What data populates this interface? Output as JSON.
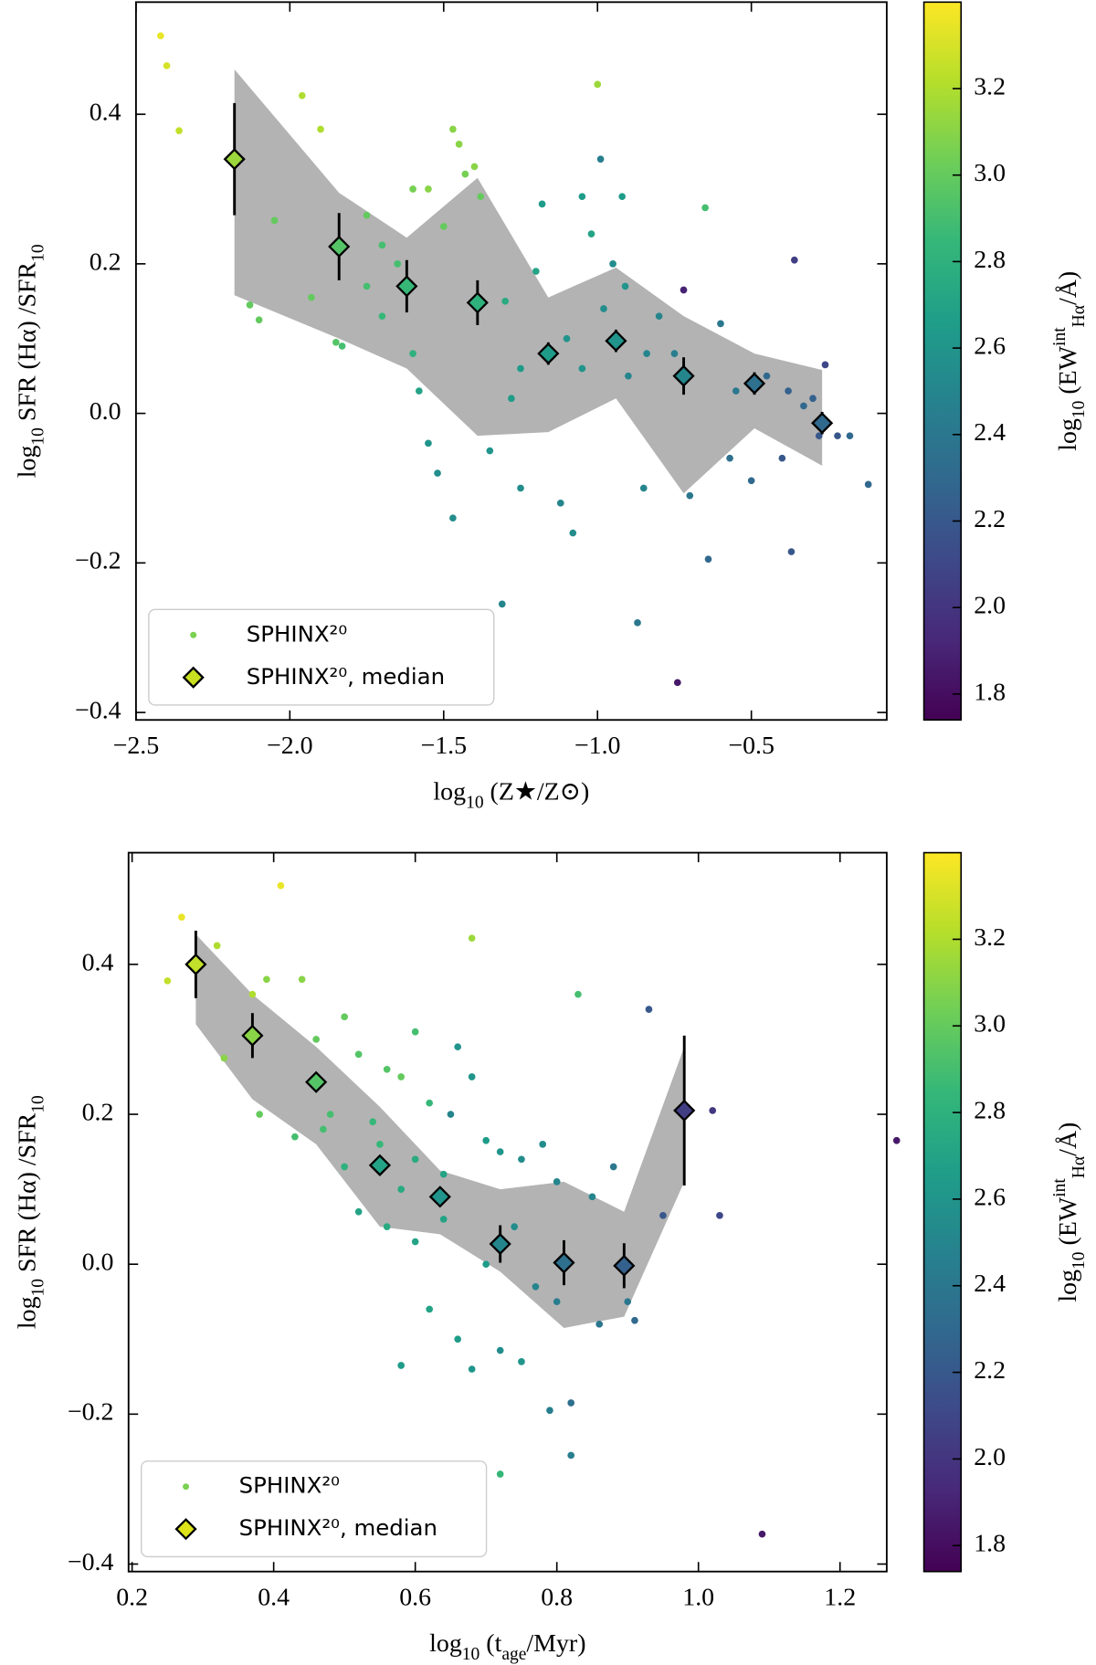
{
  "chart_data": [
    {
      "type": "scatter",
      "xlabel": "log_{10} (Z★/Z⊙)",
      "ylabel": "log_{10} SFR (Hα) /SFR_{10}",
      "xlim": [
        -2.5,
        -0.06
      ],
      "ylim": [
        -0.41,
        0.55
      ],
      "xticks": [
        {
          "value": -2.5,
          "label": "−2.5"
        },
        {
          "value": -2.0,
          "label": "−2.0"
        },
        {
          "value": -1.5,
          "label": "−1.5"
        },
        {
          "value": -1.0,
          "label": "−1.0"
        },
        {
          "value": -0.5,
          "label": "−0.5"
        }
      ],
      "yticks": [
        {
          "value": -0.4,
          "label": "−0.4"
        },
        {
          "value": -0.2,
          "label": "−0.2"
        },
        {
          "value": 0,
          "label": "0.0"
        },
        0.2,
        0.4
      ],
      "legend": "lower left",
      "series": [
        {
          "name": "SPHINX²⁰",
          "color": "#7ad151",
          "x": [
            -2.42,
            -2.4,
            -2.36,
            -1.96,
            -1.9,
            -2.05,
            -2.13,
            -2.1,
            -1.93,
            -1.85,
            -1.83,
            -1.75,
            -1.7,
            -1.65,
            -1.6,
            -1.55,
            -1.5,
            -1.47,
            -1.45,
            -1.43,
            -1.4,
            -1.38,
            -1.6,
            -1.58,
            -1.55,
            -1.52,
            -1.47,
            -1.35,
            -1.31,
            -1.28,
            -1.25,
            -1.2,
            -1.18,
            -1.12,
            -1.08,
            -1.05,
            -1.02,
            -1.0,
            -0.99,
            -0.95,
            -0.92,
            -0.91,
            -0.87,
            -0.85,
            -0.8,
            -0.75,
            -0.74,
            -0.72,
            -0.7,
            -0.65,
            -0.64,
            -0.6,
            -0.57,
            -0.5,
            -0.45,
            -0.4,
            -0.38,
            -0.37,
            -0.36,
            -0.3,
            -0.28,
            -0.26,
            -0.22,
            -0.18,
            -0.12,
            -1.1,
            -1.05,
            -0.98,
            -0.9,
            -1.3,
            -1.7,
            -1.75,
            -1.25,
            -0.84,
            -0.55,
            -0.33
          ],
          "values": [
            0.505,
            0.465,
            0.378,
            0.425,
            0.38,
            0.258,
            0.145,
            0.125,
            0.155,
            0.095,
            0.09,
            0.265,
            0.225,
            0.2,
            0.3,
            0.3,
            0.25,
            0.38,
            0.36,
            0.32,
            0.33,
            0.29,
            0.08,
            0.03,
            -0.04,
            -0.08,
            -0.14,
            -0.05,
            -0.255,
            0.02,
            -0.1,
            0.19,
            0.28,
            -0.12,
            -0.16,
            0.29,
            0.24,
            0.44,
            0.34,
            0.2,
            0.29,
            0.17,
            -0.28,
            -0.1,
            0.13,
            0.08,
            -0.36,
            0.165,
            -0.11,
            0.275,
            -0.195,
            0.12,
            -0.06,
            -0.09,
            0.05,
            -0.06,
            0.03,
            -0.185,
            0.205,
            0.02,
            -0.03,
            0.065,
            -0.03,
            -0.03,
            -0.095,
            0.1,
            0.06,
            0.14,
            0.05,
            0.15,
            0.13,
            0.17,
            0.06,
            0.08,
            0.03,
            0.01
          ],
          "c": [
            3.35,
            3.3,
            3.25,
            3.2,
            3.2,
            3.0,
            3.0,
            3.0,
            3.0,
            2.95,
            2.9,
            3.0,
            2.9,
            2.9,
            3.05,
            3.1,
            3.0,
            3.1,
            3.1,
            3.05,
            3.1,
            3.0,
            2.8,
            2.7,
            2.6,
            2.55,
            2.55,
            2.6,
            2.5,
            2.65,
            2.55,
            2.7,
            2.65,
            2.5,
            2.55,
            2.65,
            2.7,
            3.15,
            2.45,
            2.55,
            2.65,
            2.6,
            2.4,
            2.5,
            2.5,
            2.45,
            1.85,
            1.9,
            2.4,
            2.9,
            2.3,
            2.4,
            2.35,
            2.3,
            2.3,
            2.2,
            2.25,
            2.2,
            2.05,
            2.25,
            2.2,
            2.1,
            2.2,
            2.3,
            2.3,
            2.6,
            2.6,
            2.55,
            2.5,
            2.75,
            2.85,
            2.9,
            2.65,
            2.5,
            2.4,
            2.3
          ]
        },
        {
          "name": "SPHINX²⁰, median",
          "color": "#c8e020",
          "x": [
            -2.18,
            -1.84,
            -1.62,
            -1.39,
            -1.16,
            -0.94,
            -0.72,
            -0.49,
            -0.27
          ],
          "values": [
            0.34,
            0.223,
            0.17,
            0.148,
            0.08,
            0.097,
            0.05,
            0.04,
            -0.013
          ],
          "errors": [
            0.075,
            0.045,
            0.035,
            0.03,
            0.015,
            0.015,
            0.025,
            0.015,
            0.015
          ],
          "c": [
            3.15,
            2.95,
            2.85,
            2.8,
            2.65,
            2.6,
            2.5,
            2.35,
            2.3
          ]
        }
      ],
      "band": {
        "color": "#b3b3b3",
        "x": [
          -2.18,
          -1.84,
          -1.62,
          -1.39,
          -1.16,
          -0.94,
          -0.72,
          -0.49,
          -0.27
        ],
        "upper": [
          0.46,
          0.295,
          0.235,
          0.315,
          0.155,
          0.195,
          0.13,
          0.08,
          0.058
        ],
        "lower": [
          0.158,
          0.1,
          0.06,
          -0.03,
          -0.025,
          0.02,
          -0.107,
          -0.02,
          -0.07
        ]
      },
      "colorbar": {
        "colormap": "viridis",
        "label": "log_{10} (EW^{int}_{Hα}/Å)",
        "clim": [
          1.74,
          3.4
        ],
        "ticks": [
          1.8,
          {
            "value": 2.0,
            "label": "2.0"
          },
          2.2,
          2.4,
          2.6,
          2.8,
          {
            "value": 3.0,
            "label": "3.0"
          },
          3.2
        ]
      }
    },
    {
      "type": "scatter",
      "xlabel": "log_{10} (t_{age}/Myr)",
      "ylabel": "log_{10} SFR (Hα) /SFR_{10}",
      "xlim": [
        0.195,
        1.266
      ],
      "ylim": [
        -0.41,
        0.549
      ],
      "xticks": [
        0.2,
        0.4,
        0.6,
        0.8,
        {
          "value": 1.0,
          "label": "1.0"
        },
        1.2
      ],
      "yticks": [
        {
          "value": -0.4,
          "label": "−0.4"
        },
        {
          "value": -0.2,
          "label": "−0.2"
        },
        {
          "value": 0,
          "label": "0.0"
        },
        0.2,
        0.4
      ],
      "legend": "lower left",
      "series": [
        {
          "name": "SPHINX²⁰",
          "color": "#7ad151",
          "x": [
            0.25,
            0.27,
            0.41,
            0.32,
            0.33,
            0.37,
            0.38,
            0.39,
            0.44,
            0.46,
            0.5,
            0.43,
            0.48,
            0.52,
            0.56,
            0.6,
            0.58,
            0.68,
            0.62,
            0.55,
            0.6,
            0.64,
            0.66,
            0.68,
            0.65,
            0.7,
            0.72,
            0.75,
            0.78,
            0.83,
            0.8,
            0.85,
            0.88,
            0.93,
            0.95,
            1.02,
            1.03,
            1.09,
            1.28,
            0.58,
            0.62,
            0.66,
            0.68,
            0.72,
            0.75,
            0.79,
            0.82,
            0.82,
            0.72,
            0.9,
            0.91,
            0.86,
            0.52,
            0.56,
            0.6,
            0.64,
            0.7,
            0.74,
            0.77,
            0.8,
            0.58,
            0.5,
            0.47,
            0.54
          ],
          "values": [
            0.378,
            0.463,
            0.505,
            0.425,
            0.275,
            0.36,
            0.2,
            0.38,
            0.38,
            0.3,
            0.33,
            0.17,
            0.2,
            0.28,
            0.26,
            0.31,
            0.25,
            0.435,
            0.215,
            0.16,
            0.14,
            0.12,
            0.29,
            0.25,
            0.2,
            0.165,
            0.15,
            0.14,
            0.16,
            0.36,
            0.11,
            0.09,
            0.13,
            0.34,
            0.065,
            0.205,
            0.065,
            -0.36,
            0.165,
            -0.135,
            -0.06,
            -0.1,
            -0.14,
            -0.115,
            -0.13,
            -0.195,
            -0.255,
            -0.185,
            -0.28,
            -0.05,
            -0.075,
            -0.08,
            0.07,
            0.05,
            0.03,
            0.06,
            0.0,
            0.05,
            -0.03,
            -0.05,
            0.1,
            0.13,
            0.18,
            0.19
          ],
          "c": [
            3.25,
            3.35,
            3.35,
            3.2,
            3.1,
            3.2,
            3.0,
            3.1,
            3.1,
            3.0,
            3.0,
            2.9,
            2.9,
            2.95,
            2.95,
            2.9,
            3.0,
            3.15,
            2.85,
            2.85,
            2.75,
            2.7,
            2.6,
            2.6,
            2.5,
            2.65,
            2.6,
            2.55,
            2.55,
            2.9,
            2.5,
            2.5,
            2.4,
            2.2,
            2.2,
            2.0,
            2.1,
            1.85,
            1.85,
            2.65,
            2.7,
            2.65,
            2.6,
            2.55,
            2.6,
            2.45,
            2.45,
            2.35,
            2.85,
            2.4,
            2.3,
            2.4,
            2.7,
            2.75,
            2.7,
            2.7,
            2.65,
            2.55,
            2.5,
            2.45,
            2.75,
            2.8,
            2.9,
            2.85
          ]
        },
        {
          "name": "SPHINX²⁰, median",
          "color": "#dde318",
          "x": [
            0.29,
            0.37,
            0.46,
            0.55,
            0.635,
            0.72,
            0.81,
            0.895,
            0.98
          ],
          "values": [
            0.4,
            0.305,
            0.243,
            0.132,
            0.09,
            0.027,
            0.002,
            -0.002,
            0.205
          ],
          "errors": [
            0.045,
            0.03,
            0.012,
            0.012,
            0.012,
            0.025,
            0.03,
            0.03,
            0.1
          ],
          "c": [
            3.25,
            3.1,
            2.95,
            2.7,
            2.6,
            2.5,
            2.35,
            2.25,
            2.05
          ]
        }
      ],
      "band": {
        "color": "#b3b3b3",
        "x": [
          0.29,
          0.37,
          0.46,
          0.55,
          0.635,
          0.72,
          0.81,
          0.895,
          0.98
        ],
        "upper": [
          0.44,
          0.36,
          0.29,
          0.21,
          0.125,
          0.1,
          0.11,
          0.07,
          0.29
        ],
        "lower": [
          0.32,
          0.22,
          0.16,
          0.05,
          0.04,
          -0.01,
          -0.085,
          -0.07,
          0.11
        ]
      },
      "colorbar": {
        "colormap": "viridis",
        "label": "log_{10} (EW^{int}_{Hα}/Å)",
        "clim": [
          1.74,
          3.4
        ],
        "ticks": [
          1.8,
          {
            "value": 2.0,
            "label": "2.0"
          },
          2.2,
          2.4,
          2.6,
          2.8,
          {
            "value": 3.0,
            "label": "3.0"
          },
          3.2
        ]
      }
    }
  ]
}
